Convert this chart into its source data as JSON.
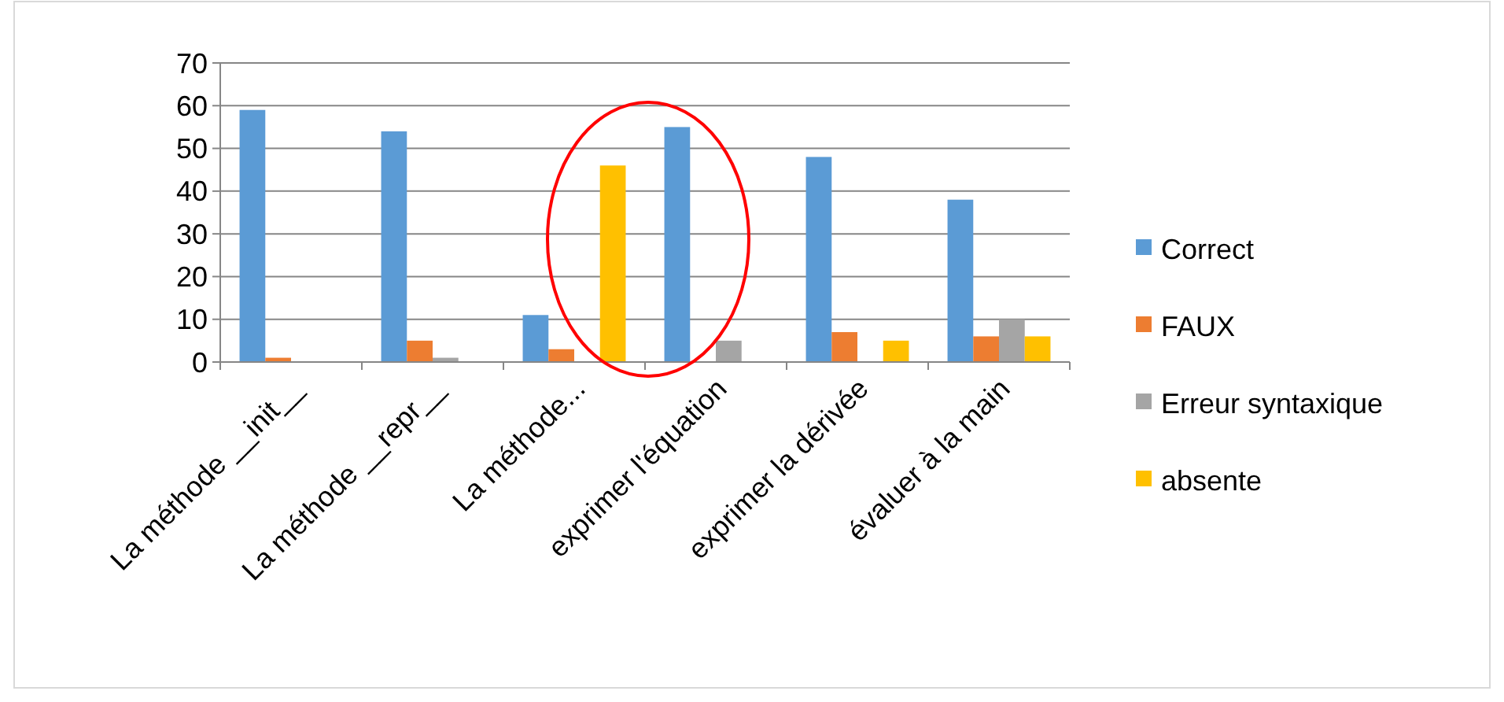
{
  "chart_data": {
    "type": "bar",
    "categories": [
      "La méthode __init__",
      "La méthode __repr__",
      "La méthode...",
      "exprimer l'équation",
      "exprimer la dérivée",
      "évaluer à la main"
    ],
    "series": [
      {
        "name": "Correct",
        "color": "#5b9bd5",
        "values": [
          59,
          54,
          11,
          55,
          48,
          38
        ]
      },
      {
        "name": "FAUX",
        "color": "#ed7d31",
        "values": [
          1,
          5,
          3,
          0,
          7,
          6
        ]
      },
      {
        "name": "Erreur syntaxique",
        "color": "#a5a5a5",
        "values": [
          0,
          1,
          0,
          5,
          0,
          10
        ]
      },
      {
        "name": "absente",
        "color": "#ffc000",
        "values": [
          0,
          0,
          46,
          0,
          5,
          6
        ]
      }
    ],
    "ylim": [
      0,
      70
    ],
    "yticks": [
      0,
      10,
      20,
      30,
      40,
      50,
      60,
      70
    ],
    "grid": "y",
    "legend": "right"
  }
}
